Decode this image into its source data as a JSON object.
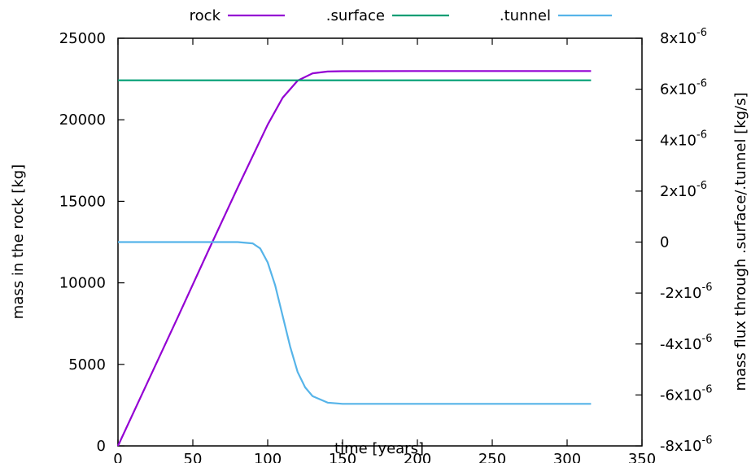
{
  "chart_data": {
    "type": "line",
    "title": "",
    "xlabel": "time [years]",
    "ylabel": "mass in the rock [kg]",
    "y2label": "mass flux through .surface/.tunnel [kg/s]",
    "xlim": [
      0,
      350
    ],
    "ylim": [
      0,
      25000
    ],
    "y2lim": [
      -8e-06,
      8e-06
    ],
    "grid": false,
    "legend_position": "top",
    "x_ticks": [
      {
        "value": 0,
        "label": "0"
      },
      {
        "value": 50,
        "label": "50"
      },
      {
        "value": 100,
        "label": "100"
      },
      {
        "value": 150,
        "label": "150"
      },
      {
        "value": 200,
        "label": "200"
      },
      {
        "value": 250,
        "label": "250"
      },
      {
        "value": 300,
        "label": "300"
      },
      {
        "value": 350,
        "label": "350"
      }
    ],
    "y_ticks": [
      {
        "value": 0,
        "label": "0"
      },
      {
        "value": 5000,
        "label": "5000"
      },
      {
        "value": 10000,
        "label": "10000"
      },
      {
        "value": 15000,
        "label": "15000"
      },
      {
        "value": 20000,
        "label": "20000"
      },
      {
        "value": 25000,
        "label": "25000"
      }
    ],
    "y2_ticks": [
      {
        "value": -8e-06,
        "mantissa": "-8x10",
        "exp": "-6"
      },
      {
        "value": -6e-06,
        "mantissa": "-6x10",
        "exp": "-6"
      },
      {
        "value": -4e-06,
        "mantissa": "-4x10",
        "exp": "-6"
      },
      {
        "value": -2e-06,
        "mantissa": "-2x10",
        "exp": "-6"
      },
      {
        "value": 0,
        "mantissa": "0",
        "exp": ""
      },
      {
        "value": 2e-06,
        "mantissa": "2x10",
        "exp": "-6"
      },
      {
        "value": 4e-06,
        "mantissa": "4x10",
        "exp": "-6"
      },
      {
        "value": 6e-06,
        "mantissa": "6x10",
        "exp": "-6"
      },
      {
        "value": 8e-06,
        "mantissa": "8x10",
        "exp": "-6"
      }
    ],
    "series": [
      {
        "name": "rock",
        "color": "#9400d3",
        "axis": "y",
        "x": [
          0,
          20,
          40,
          60,
          80,
          100,
          110,
          120,
          130,
          140,
          150,
          200,
          250,
          300,
          316
        ],
        "y": [
          0,
          3950,
          7900,
          11900,
          15850,
          19700,
          21350,
          22400,
          22850,
          22960,
          22980,
          22990,
          22990,
          22990,
          22990
        ]
      },
      {
        "name": ".surface",
        "color": "#009e73",
        "axis": "y2",
        "x": [
          0,
          316
        ],
        "y": [
          6.35e-06,
          6.35e-06
        ]
      },
      {
        "name": ".tunnel",
        "color": "#56b4e9",
        "axis": "y2",
        "x": [
          0,
          50,
          80,
          90,
          95,
          100,
          105,
          110,
          115,
          120,
          125,
          130,
          140,
          150,
          200,
          250,
          316
        ],
        "y": [
          0,
          0,
          0,
          -5e-08,
          -2.5e-07,
          -8e-07,
          -1.7e-06,
          -2.9e-06,
          -4.1e-06,
          -5.1e-06,
          -5.7e-06,
          -6.05e-06,
          -6.3e-06,
          -6.35e-06,
          -6.35e-06,
          -6.35e-06,
          -6.35e-06
        ]
      }
    ]
  }
}
